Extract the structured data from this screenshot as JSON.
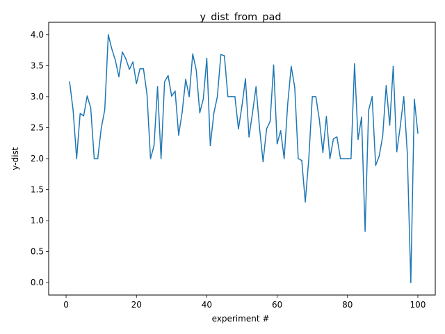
{
  "chart_data": {
    "type": "line",
    "title": "y_dist_from_pad",
    "xlabel": "experiment #",
    "ylabel": "y-dist",
    "xlim": [
      -4.95,
      104.95
    ],
    "ylim": [
      -0.2,
      4.2
    ],
    "xticks": [
      0,
      20,
      40,
      60,
      80,
      100
    ],
    "xtick_labels": [
      "0",
      "20",
      "40",
      "60",
      "80",
      "100"
    ],
    "yticks": [
      0.0,
      0.5,
      1.0,
      1.5,
      2.0,
      2.5,
      3.0,
      3.5,
      4.0
    ],
    "ytick_labels": [
      "0.0",
      "0.5",
      "1.0",
      "1.5",
      "2.0",
      "2.5",
      "3.0",
      "3.5",
      "4.0"
    ],
    "grid": false,
    "line_color": "#1f77b4",
    "series": [
      {
        "x": [
          1,
          2,
          3,
          4,
          5,
          6,
          7,
          8,
          9,
          10,
          11,
          12,
          13,
          14,
          15,
          16,
          17,
          18,
          19,
          20,
          21,
          22,
          23,
          24,
          25,
          26,
          27,
          28,
          29,
          30,
          31,
          32,
          33,
          34,
          35,
          36,
          37,
          38,
          39,
          40,
          41,
          42,
          43,
          44,
          45,
          46,
          47,
          48,
          49,
          50,
          51,
          52,
          53,
          54,
          55,
          56,
          57,
          58,
          59,
          60,
          61,
          62,
          63,
          64,
          65,
          66,
          67,
          68,
          69,
          70,
          71,
          72,
          73,
          74,
          75,
          76,
          77,
          78,
          79,
          80,
          81,
          82,
          83,
          84,
          85,
          86,
          87,
          88,
          89,
          90,
          91,
          92,
          93,
          94,
          95,
          96,
          97,
          98,
          99,
          100
        ],
        "values": [
          3.24,
          2.78,
          2.0,
          2.73,
          2.69,
          3.01,
          2.82,
          2.0,
          2.0,
          2.49,
          2.79,
          4.0,
          3.77,
          3.59,
          3.32,
          3.72,
          3.61,
          3.44,
          3.56,
          3.21,
          3.45,
          3.45,
          3.04,
          2.0,
          2.21,
          3.16,
          2.0,
          3.24,
          3.34,
          3.01,
          3.09,
          2.38,
          2.75,
          3.28,
          3.0,
          3.69,
          3.43,
          2.74,
          2.96,
          3.62,
          2.21,
          2.73,
          3.0,
          3.68,
          3.66,
          3.0,
          3.0,
          3.0,
          2.48,
          2.85,
          3.29,
          2.35,
          2.74,
          3.16,
          2.49,
          1.95,
          2.48,
          2.6,
          3.51,
          2.24,
          2.45,
          2.0,
          2.88,
          3.49,
          3.15,
          2.0,
          1.97,
          1.3,
          2.0,
          3.0,
          3.0,
          2.63,
          2.1,
          2.68,
          2.0,
          2.32,
          2.35,
          2.0,
          2.0,
          2.0,
          2.0,
          3.53,
          2.31,
          2.67,
          0.83,
          2.78,
          3.0,
          1.89,
          2.04,
          2.36,
          3.18,
          2.54,
          3.49,
          2.11,
          2.52,
          3.0,
          2.09,
          0.0,
          2.96,
          2.41
        ]
      }
    ]
  }
}
